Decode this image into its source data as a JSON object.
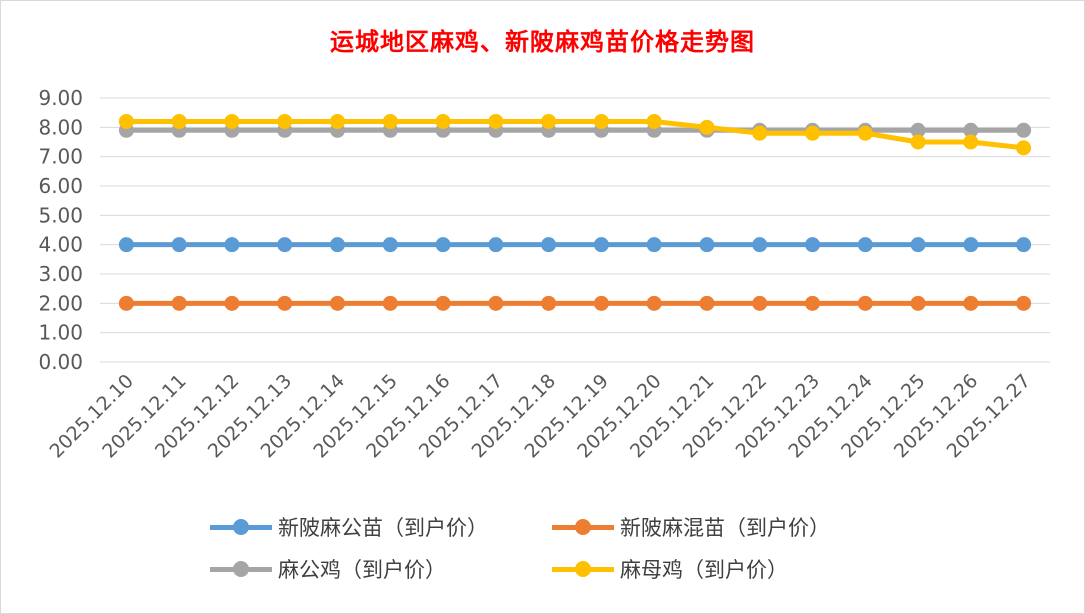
{
  "chart_data": {
    "type": "line",
    "title": "运城地区麻鸡、新陂麻鸡苗价格走势图",
    "xlabel": "",
    "ylabel": "",
    "ylim": [
      0,
      9
    ],
    "ytick_step": 1,
    "grid": true,
    "legend_position": "bottom",
    "categories": [
      "2025.12.10",
      "2025.12.11",
      "2025.12.12",
      "2025.12.13",
      "2025.12.14",
      "2025.12.15",
      "2025.12.16",
      "2025.12.17",
      "2025.12.18",
      "2025.12.19",
      "2025.12.20",
      "2025.12.21",
      "2025.12.22",
      "2025.12.23",
      "2025.12.24",
      "2025.12.25",
      "2025.12.26",
      "2025.12.27"
    ],
    "series": [
      {
        "name": "新陂麻公苗（到户价）",
        "color": "#5b9bd5",
        "values": [
          4.0,
          4.0,
          4.0,
          4.0,
          4.0,
          4.0,
          4.0,
          4.0,
          4.0,
          4.0,
          4.0,
          4.0,
          4.0,
          4.0,
          4.0,
          4.0,
          4.0,
          4.0
        ]
      },
      {
        "name": "新陂麻混苗（到户价）",
        "color": "#ed7d31",
        "values": [
          2.0,
          2.0,
          2.0,
          2.0,
          2.0,
          2.0,
          2.0,
          2.0,
          2.0,
          2.0,
          2.0,
          2.0,
          2.0,
          2.0,
          2.0,
          2.0,
          2.0,
          2.0
        ]
      },
      {
        "name": "麻公鸡（到户价）",
        "color": "#a5a5a5",
        "values": [
          7.9,
          7.9,
          7.9,
          7.9,
          7.9,
          7.9,
          7.9,
          7.9,
          7.9,
          7.9,
          7.9,
          7.9,
          7.9,
          7.9,
          7.9,
          7.9,
          7.9,
          7.9
        ]
      },
      {
        "name": "麻母鸡（到户价）",
        "color": "#ffc000",
        "values": [
          8.2,
          8.2,
          8.2,
          8.2,
          8.2,
          8.2,
          8.2,
          8.2,
          8.2,
          8.2,
          8.2,
          8.0,
          7.8,
          7.8,
          7.8,
          7.5,
          7.5,
          7.3
        ]
      }
    ]
  },
  "colors": {
    "title": "#ff0000",
    "grid": "#d9d9d9",
    "axis_text": "#595959"
  }
}
